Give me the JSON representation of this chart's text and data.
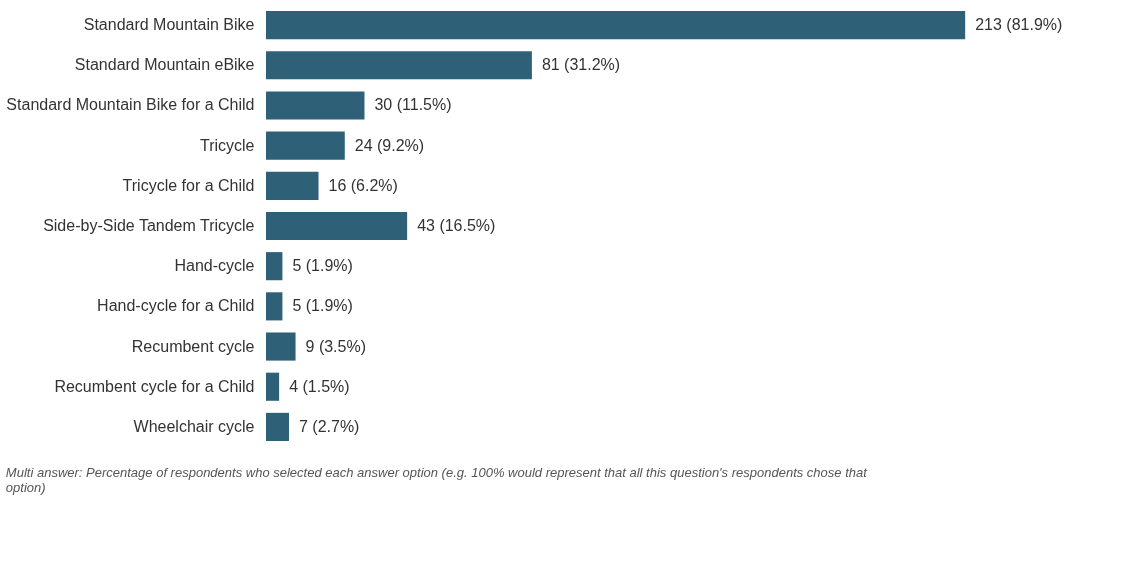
{
  "chart_data": {
    "type": "bar",
    "orientation": "horizontal",
    "categories": [
      "Standard Mountain Bike",
      "Standard Mountain eBike",
      "Standard Mountain Bike for a Child",
      "Tricycle",
      "Tricycle for a Child",
      "Side-by-Side Tandem Tricycle",
      "Hand-cycle",
      "Hand-cycle for a Child",
      "Recumbent cycle",
      "Recumbent cycle for a Child",
      "Wheelchair cycle"
    ],
    "values": [
      213,
      81,
      30,
      24,
      16,
      43,
      5,
      5,
      9,
      4,
      7
    ],
    "value_labels": [
      "213  (81.9%)",
      "81  (31.2%)",
      "30  (11.5%)",
      "24  (9.2%)",
      "16  (6.2%)",
      "43  (16.5%)",
      "5  (1.9%)",
      "5  (1.9%)",
      "9  (3.5%)",
      "4  (1.5%)",
      "7  (2.7%)"
    ],
    "color": "#2e6078",
    "grid": false,
    "legend": false,
    "annotations": [
      "Multi answer: Percentage of respondents who selected each answer option (e.g. 100% would represent that all this question's respondents chose that option)"
    ]
  }
}
